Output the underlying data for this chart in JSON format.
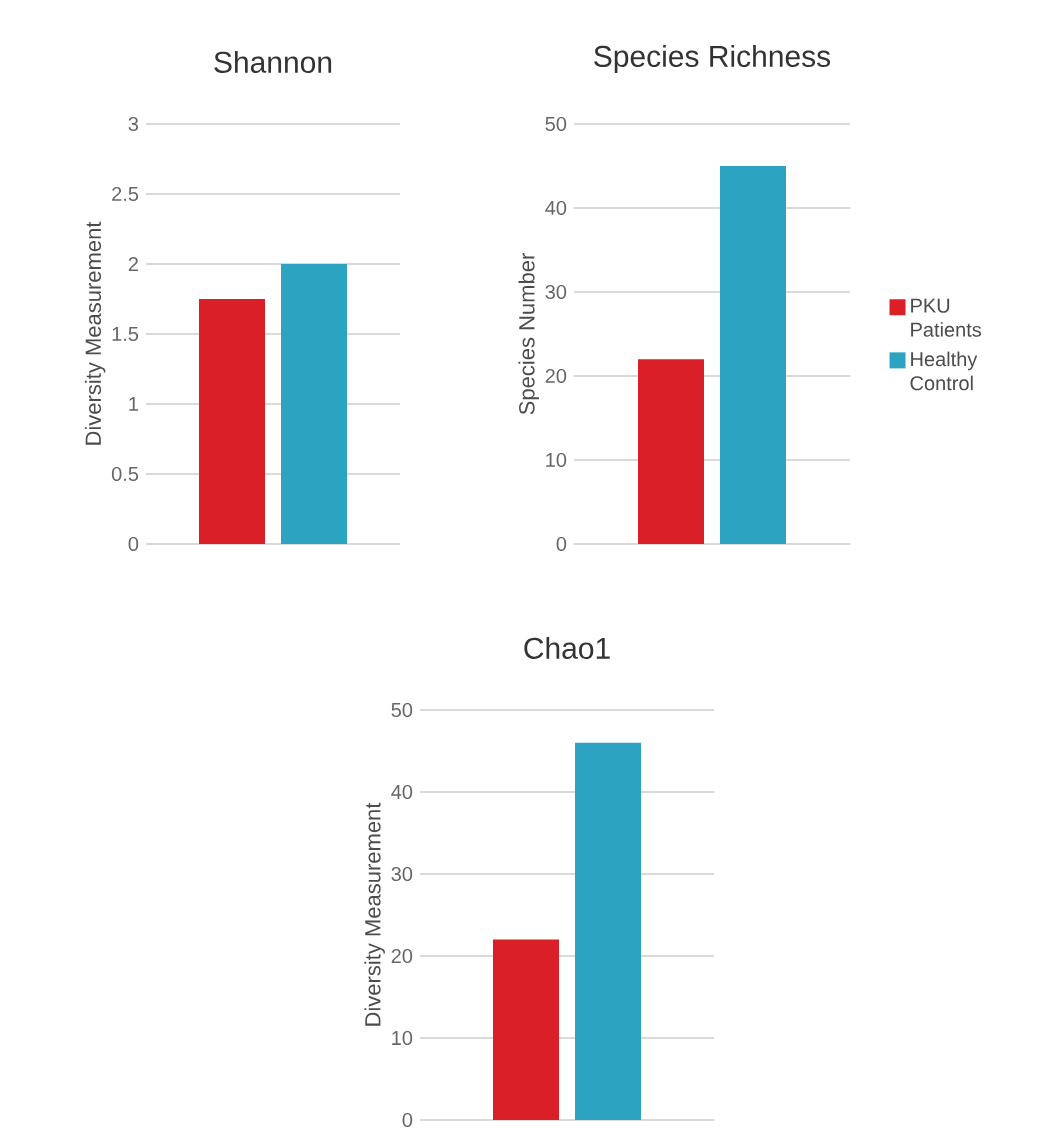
{
  "chart_data": [
    {
      "type": "bar",
      "title": "Shannon",
      "ylabel": "Diversity Measurement",
      "categories": [
        null
      ],
      "series": [
        {
          "color": "#da1f28",
          "values": [
            1.75
          ]
        },
        {
          "color": "#2ca3c0",
          "values": [
            2.0
          ]
        }
      ],
      "ylim": [
        0,
        3
      ],
      "yticks": [
        0,
        0.5,
        1,
        1.5,
        2,
        2.5,
        3
      ],
      "grid": "y"
    },
    {
      "type": "bar",
      "title": "Species Richness",
      "ylabel": "Species Number",
      "categories": [
        null
      ],
      "series": [
        {
          "name": "PKU Patients",
          "color": "#da1f28",
          "values": [
            22
          ]
        },
        {
          "name": "Healthy Control",
          "color": "#2ca3c0",
          "values": [
            45
          ]
        }
      ],
      "ylim": [
        0,
        50
      ],
      "yticks": [
        0,
        10,
        20,
        30,
        40,
        50
      ],
      "grid": "y",
      "legend": "right"
    },
    {
      "type": "bar",
      "title": "Chao1",
      "ylabel": "Diversity Measurement",
      "categories": [
        null
      ],
      "series": [
        {
          "color": "#da1f28",
          "values": [
            22
          ]
        },
        {
          "color": "#2ca3c0",
          "values": [
            46
          ]
        }
      ],
      "ylim": [
        0,
        50
      ],
      "yticks": [
        0,
        10,
        20,
        30,
        40,
        50
      ],
      "grid": "y"
    }
  ]
}
